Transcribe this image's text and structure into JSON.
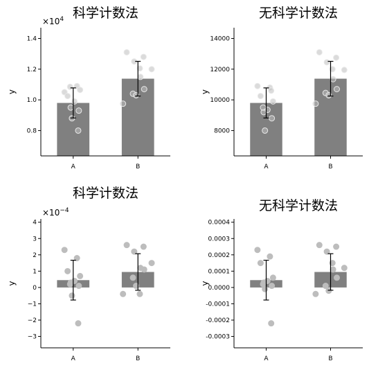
{
  "chart_data": [
    {
      "type": "bar",
      "title": "科学计数法",
      "ylabel": "y",
      "categories": [
        "A",
        "B"
      ],
      "values": [
        9800,
        11380
      ],
      "errors": [
        980,
        1130
      ],
      "ylim": [
        6350,
        14700
      ],
      "yticks": [
        8000,
        10000,
        12000,
        14000
      ],
      "ytick_labels": [
        "0.8",
        "1.0",
        "1.2",
        "1.4"
      ],
      "offset_label": "×10",
      "offset_exp": "4",
      "points": [
        {
          "category": "A",
          "values": [
            10500,
            10900,
            10250,
            10650,
            9900,
            9500,
            9300,
            8800,
            8000,
            10850
          ]
        },
        {
          "category": "B",
          "values": [
            13100,
            12800,
            12500,
            12000,
            11500,
            10700,
            10400,
            10300,
            9750,
            12050
          ]
        }
      ]
    },
    {
      "type": "bar",
      "title": "无科学计数法",
      "ylabel": "y",
      "categories": [
        "A",
        "B"
      ],
      "values": [
        9800,
        11380
      ],
      "errors": [
        980,
        1130
      ],
      "ylim": [
        6350,
        14700
      ],
      "yticks": [
        8000,
        10000,
        12000,
        14000
      ],
      "ytick_labels": [
        "8000",
        "10000",
        "12000",
        "14000"
      ],
      "offset_label": "",
      "offset_exp": "",
      "points": [
        {
          "category": "A",
          "values": [
            10900,
            10800,
            10250,
            9900,
            9350,
            9200,
            8800,
            8000,
            10600,
            9500
          ]
        },
        {
          "category": "B",
          "values": [
            13100,
            12750,
            12450,
            11950,
            11350,
            10700,
            10450,
            10300,
            9750,
            12000
          ]
        }
      ]
    },
    {
      "type": "bar",
      "title": "科学计数法",
      "ylabel": "y",
      "categories": [
        "A",
        "B"
      ],
      "values": [
        4.5e-05,
        9.5e-05
      ],
      "errors": [
        0.000122,
        0.000112
      ],
      "ylim": [
        -0.00037,
        0.00042
      ],
      "yticks": [
        -0.0003,
        -0.0002,
        -0.0001,
        0,
        0.0001,
        0.0002,
        0.0003,
        0.0004
      ],
      "ytick_labels": [
        "−3",
        "−2",
        "−1",
        "0",
        "1",
        "2",
        "3",
        "4"
      ],
      "offset_label": "×10",
      "offset_exp": "−4",
      "points": [
        {
          "category": "A",
          "values": [
            0.00023,
            0.00018,
            0.0001,
            7e-05,
            4e-05,
            3e-05,
            1e-05,
            -5e-05,
            -0.00022,
            2e-05
          ]
        },
        {
          "category": "B",
          "values": [
            0.00026,
            0.00025,
            0.00022,
            0.00015,
            0.00012,
            0.00011,
            6e-05,
            1e-05,
            -4e-05,
            -4e-05
          ]
        }
      ]
    },
    {
      "type": "bar",
      "title": "无科学计数法",
      "ylabel": "y",
      "categories": [
        "A",
        "B"
      ],
      "values": [
        4.5e-05,
        9.5e-05
      ],
      "errors": [
        0.000122,
        0.000112
      ],
      "ylim": [
        -0.00037,
        0.00042
      ],
      "yticks": [
        -0.0003,
        -0.0002,
        -0.0001,
        0,
        0.0001,
        0.0002,
        0.0003,
        0.0004
      ],
      "ytick_labels": [
        "-0.0003",
        "-0.0002",
        "-0.0001",
        "0.0000",
        "0.0001",
        "0.0002",
        "0.0003",
        "0.0004"
      ],
      "offset_label": "",
      "offset_exp": "",
      "points": [
        {
          "category": "A",
          "values": [
            0.00023,
            0.00019,
            0.00015,
            6e-05,
            4e-05,
            3e-05,
            1e-05,
            -1e-05,
            -0.00022,
            2e-05
          ]
        },
        {
          "category": "B",
          "values": [
            0.00026,
            0.00025,
            0.00022,
            0.00012,
            0.00011,
            6e-05,
            1e-05,
            -2e-05,
            -4e-05,
            0.00015
          ]
        }
      ]
    }
  ]
}
